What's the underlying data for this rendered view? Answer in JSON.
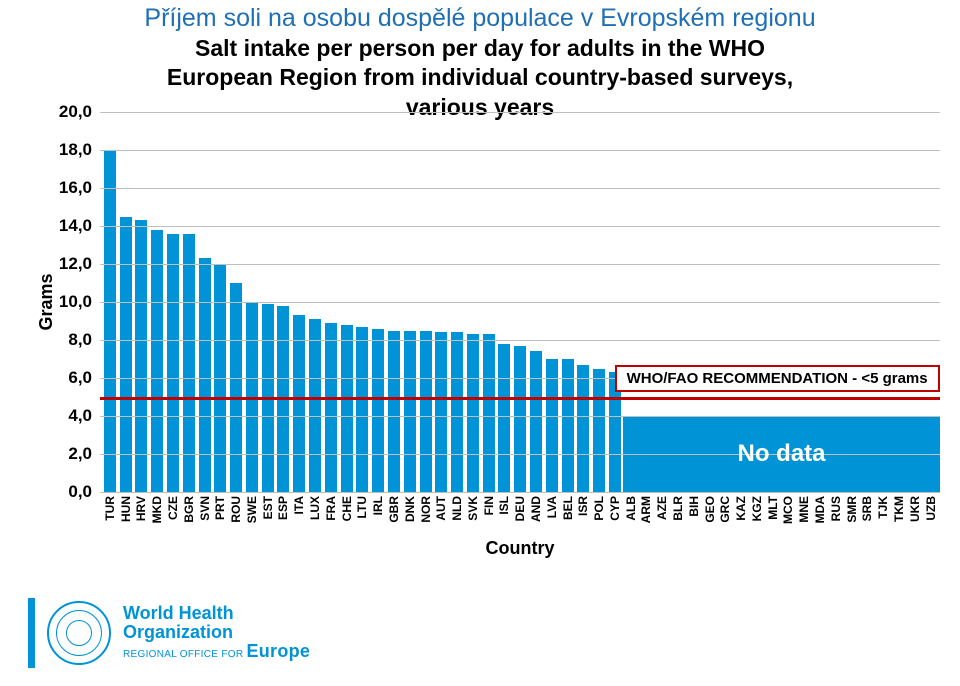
{
  "title_cz": "Příjem soli na osobu dospělé populace v Evropském regionu",
  "title_en_line1": "Salt intake per person per day for adults in the WHO",
  "title_en_line2": "European Region from individual country-based surveys,",
  "title_en_line3": "various years",
  "chart": {
    "type": "bar",
    "ylabel": "Grams",
    "xlabel": "Country",
    "ylim": [
      0,
      20
    ],
    "ytick_step": 2,
    "yticks": [
      "0,0",
      "2,0",
      "4,0",
      "6,0",
      "8,0",
      "10,0",
      "12,0",
      "14,0",
      "16,0",
      "18,0",
      "20,0"
    ],
    "bar_color": "#0093d5",
    "grid_color": "#bfbfbf",
    "background_color": "#ffffff",
    "nodata_bg": "#0093d5",
    "nodata_text_color": "#ffffff",
    "nodata_label": "No data",
    "recommendation": {
      "value": 5,
      "label": "WHO/FAO RECOMMENDATION - <5 grams",
      "line_color": "#c00000",
      "box_border": "#c00000",
      "text_color": "#000000"
    },
    "countries": [
      "TUR",
      "HUN",
      "HRV",
      "MKD",
      "CZE",
      "BGR",
      "SVN",
      "PRT",
      "ROU",
      "SWE",
      "EST",
      "ESP",
      "ITA",
      "LUX",
      "FRA",
      "CHE",
      "LTU",
      "IRL",
      "GBR",
      "DNK",
      "NOR",
      "AUT",
      "NLD",
      "SVK",
      "FIN",
      "ISL",
      "DEU",
      "AND",
      "LVA",
      "BEL",
      "ISR",
      "POL",
      "CYP",
      "ALB",
      "ARM",
      "AZE",
      "BLR",
      "BIH",
      "GEO",
      "GRC",
      "KAZ",
      "KGZ",
      "MLT",
      "MCO",
      "MNE",
      "MDA",
      "RUS",
      "SMR",
      "SRB",
      "TJK",
      "TKM",
      "UKR",
      "UZB"
    ],
    "values": [
      18.0,
      14.5,
      14.3,
      13.8,
      13.6,
      13.6,
      12.3,
      12.0,
      11.0,
      10.0,
      9.9,
      9.8,
      9.3,
      9.1,
      8.9,
      8.8,
      8.7,
      8.6,
      8.5,
      8.5,
      8.5,
      8.4,
      8.4,
      8.3,
      8.3,
      7.8,
      7.7,
      7.4,
      7.0,
      7.0,
      6.7,
      6.5,
      6.3,
      0,
      0,
      0,
      0,
      0,
      0,
      0,
      0,
      0,
      0,
      0,
      0,
      0,
      0,
      0,
      0,
      0,
      0,
      0,
      0
    ],
    "nodata_start_index": 33
  },
  "logo": {
    "org_line1": "World Health",
    "org_line2": "Organization",
    "region_prefix": "REGIONAL OFFICE FOR",
    "region": "Europe",
    "brand_color": "#0093d5"
  }
}
